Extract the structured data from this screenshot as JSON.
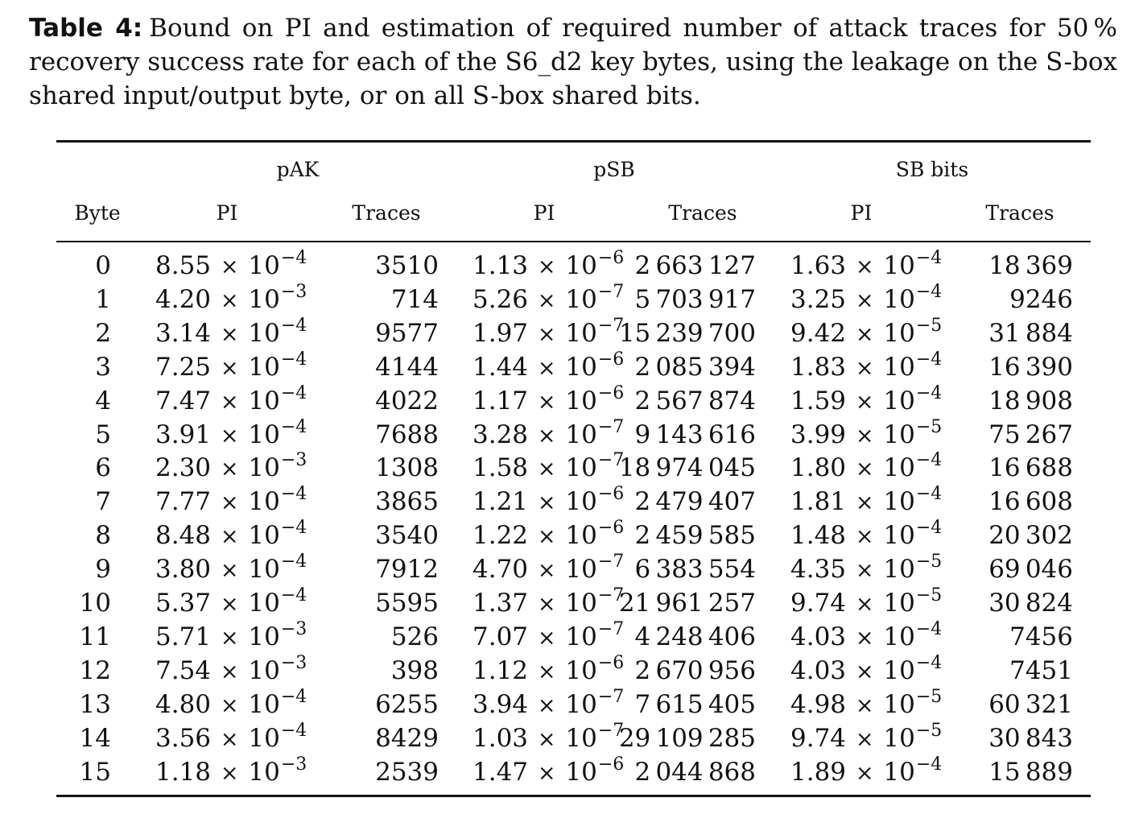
{
  "caption": {
    "label": "Table 4:",
    "text": "Bound on PI and estimation of required number of attack traces for 50 % recovery success rate for each of the S6_d2 key bytes, using the leakage on the S-box shared input/output byte, or on all S-box shared bits."
  },
  "table": {
    "groups": [
      "pAK",
      "pSB",
      "SB bits"
    ],
    "columns": [
      "Byte",
      "PI",
      "Traces",
      "PI",
      "Traces",
      "PI",
      "Traces"
    ],
    "rows": [
      {
        "byte": "0",
        "pak_pi": {
          "m": "8.55",
          "e": "−4"
        },
        "pak_traces": "3510",
        "psb_pi": {
          "m": "1.13",
          "e": "−6"
        },
        "psb_traces": "2 663 127",
        "sb_pi": {
          "m": "1.63",
          "e": "−4"
        },
        "sb_traces": "18 369"
      },
      {
        "byte": "1",
        "pak_pi": {
          "m": "4.20",
          "e": "−3"
        },
        "pak_traces": "714",
        "psb_pi": {
          "m": "5.26",
          "e": "−7"
        },
        "psb_traces": "5 703 917",
        "sb_pi": {
          "m": "3.25",
          "e": "−4"
        },
        "sb_traces": "9246"
      },
      {
        "byte": "2",
        "pak_pi": {
          "m": "3.14",
          "e": "−4"
        },
        "pak_traces": "9577",
        "psb_pi": {
          "m": "1.97",
          "e": "−7"
        },
        "psb_traces": "15 239 700",
        "sb_pi": {
          "m": "9.42",
          "e": "−5"
        },
        "sb_traces": "31 884"
      },
      {
        "byte": "3",
        "pak_pi": {
          "m": "7.25",
          "e": "−4"
        },
        "pak_traces": "4144",
        "psb_pi": {
          "m": "1.44",
          "e": "−6"
        },
        "psb_traces": "2 085 394",
        "sb_pi": {
          "m": "1.83",
          "e": "−4"
        },
        "sb_traces": "16 390"
      },
      {
        "byte": "4",
        "pak_pi": {
          "m": "7.47",
          "e": "−4"
        },
        "pak_traces": "4022",
        "psb_pi": {
          "m": "1.17",
          "e": "−6"
        },
        "psb_traces": "2 567 874",
        "sb_pi": {
          "m": "1.59",
          "e": "−4"
        },
        "sb_traces": "18 908"
      },
      {
        "byte": "5",
        "pak_pi": {
          "m": "3.91",
          "e": "−4"
        },
        "pak_traces": "7688",
        "psb_pi": {
          "m": "3.28",
          "e": "−7"
        },
        "psb_traces": "9 143 616",
        "sb_pi": {
          "m": "3.99",
          "e": "−5"
        },
        "sb_traces": "75 267"
      },
      {
        "byte": "6",
        "pak_pi": {
          "m": "2.30",
          "e": "−3"
        },
        "pak_traces": "1308",
        "psb_pi": {
          "m": "1.58",
          "e": "−7"
        },
        "psb_traces": "18 974 045",
        "sb_pi": {
          "m": "1.80",
          "e": "−4"
        },
        "sb_traces": "16 688"
      },
      {
        "byte": "7",
        "pak_pi": {
          "m": "7.77",
          "e": "−4"
        },
        "pak_traces": "3865",
        "psb_pi": {
          "m": "1.21",
          "e": "−6"
        },
        "psb_traces": "2 479 407",
        "sb_pi": {
          "m": "1.81",
          "e": "−4"
        },
        "sb_traces": "16 608"
      },
      {
        "byte": "8",
        "pak_pi": {
          "m": "8.48",
          "e": "−4"
        },
        "pak_traces": "3540",
        "psb_pi": {
          "m": "1.22",
          "e": "−6"
        },
        "psb_traces": "2 459 585",
        "sb_pi": {
          "m": "1.48",
          "e": "−4"
        },
        "sb_traces": "20 302"
      },
      {
        "byte": "9",
        "pak_pi": {
          "m": "3.80",
          "e": "−4"
        },
        "pak_traces": "7912",
        "psb_pi": {
          "m": "4.70",
          "e": "−7"
        },
        "psb_traces": "6 383 554",
        "sb_pi": {
          "m": "4.35",
          "e": "−5"
        },
        "sb_traces": "69 046"
      },
      {
        "byte": "10",
        "pak_pi": {
          "m": "5.37",
          "e": "−4"
        },
        "pak_traces": "5595",
        "psb_pi": {
          "m": "1.37",
          "e": "−7"
        },
        "psb_traces": "21 961 257",
        "sb_pi": {
          "m": "9.74",
          "e": "−5"
        },
        "sb_traces": "30 824"
      },
      {
        "byte": "11",
        "pak_pi": {
          "m": "5.71",
          "e": "−3"
        },
        "pak_traces": "526",
        "psb_pi": {
          "m": "7.07",
          "e": "−7"
        },
        "psb_traces": "4 248 406",
        "sb_pi": {
          "m": "4.03",
          "e": "−4"
        },
        "sb_traces": "7456"
      },
      {
        "byte": "12",
        "pak_pi": {
          "m": "7.54",
          "e": "−3"
        },
        "pak_traces": "398",
        "psb_pi": {
          "m": "1.12",
          "e": "−6"
        },
        "psb_traces": "2 670 956",
        "sb_pi": {
          "m": "4.03",
          "e": "−4"
        },
        "sb_traces": "7451"
      },
      {
        "byte": "13",
        "pak_pi": {
          "m": "4.80",
          "e": "−4"
        },
        "pak_traces": "6255",
        "psb_pi": {
          "m": "3.94",
          "e": "−7"
        },
        "psb_traces": "7 615 405",
        "sb_pi": {
          "m": "4.98",
          "e": "−5"
        },
        "sb_traces": "60 321"
      },
      {
        "byte": "14",
        "pak_pi": {
          "m": "3.56",
          "e": "−4"
        },
        "pak_traces": "8429",
        "psb_pi": {
          "m": "1.03",
          "e": "−7"
        },
        "psb_traces": "29 109 285",
        "sb_pi": {
          "m": "9.74",
          "e": "−5"
        },
        "sb_traces": "30 843"
      },
      {
        "byte": "15",
        "pak_pi": {
          "m": "1.18",
          "e": "−3"
        },
        "pak_traces": "2539",
        "psb_pi": {
          "m": "1.47",
          "e": "−6"
        },
        "psb_traces": "2 044 868",
        "sb_pi": {
          "m": "1.89",
          "e": "−4"
        },
        "sb_traces": "15 889"
      }
    ]
  }
}
